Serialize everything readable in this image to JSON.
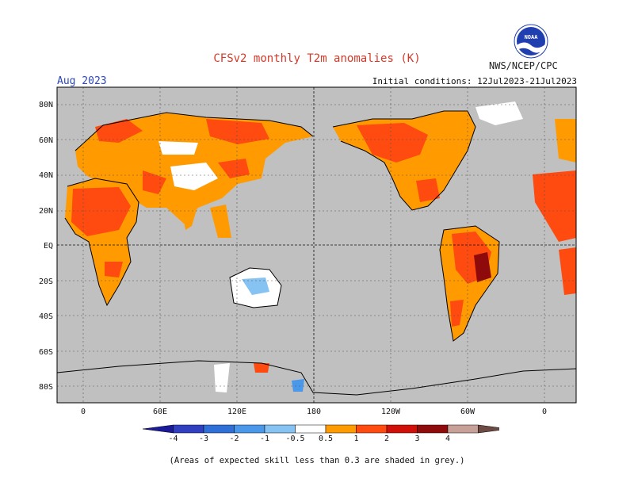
{
  "title": "CFSv2 monthly T2m anomalies (K)",
  "org": "NWS/NCEP/CPC",
  "logo_text": "NOAA",
  "month_label": "Aug 2023",
  "init_conditions": "Initial conditions: 12Jul2023-21Jul2023",
  "lat_labels": [
    "80N",
    "60N",
    "40N",
    "20N",
    "EQ",
    "20S",
    "40S",
    "60S",
    "80S"
  ],
  "lon_labels": [
    "0",
    "60E",
    "120E",
    "180",
    "120W",
    "60W",
    "0"
  ],
  "colorbar": {
    "ticks": [
      "-4",
      "-3",
      "-2",
      "-1",
      "-0.5",
      "0.5",
      "1",
      "2",
      "3",
      "4"
    ],
    "colors": [
      "#1a1a9a",
      "#2f3fc0",
      "#2f6fd8",
      "#4a98ea",
      "#86c2f2",
      "#ffffff",
      "#ff9b00",
      "#ff4a10",
      "#d01008",
      "#8f0a0a",
      "#c7a197",
      "#6e4a44"
    ]
  },
  "colors": {
    "ocean_grey": "#c0c0c0",
    "warm_light": "#ff9b00",
    "warm_mid": "#ff4a10",
    "warm_strong": "#d01008",
    "warm_extreme": "#8f0a0a",
    "cool_light": "#86c2f2",
    "cool_mid": "#4a98ea"
  },
  "note": "(Areas of expected skill less than 0.3 are shaded in grey.)"
}
